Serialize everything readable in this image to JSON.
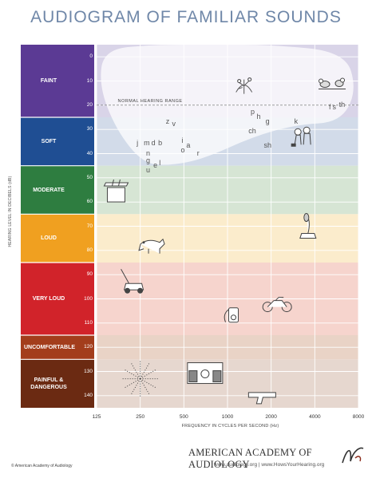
{
  "title": "AUDIOGRAM OF FAMILIAR SOUNDS",
  "chart_data": {
    "type": "audiogram",
    "title": "AUDIOGRAM OF FAMILIAR SOUNDS",
    "xlabel": "FREQUENCY IN CYCLES PER SECOND (Hz)",
    "ylabel": "HEARING LEVEL IN DECIBELS (dB)",
    "x_ticks": [
      125,
      250,
      500,
      1000,
      2000,
      4000,
      8000
    ],
    "x_scale": "log",
    "y_ticks": [
      0,
      10,
      20,
      30,
      40,
      50,
      60,
      70,
      80,
      90,
      100,
      110,
      120,
      130,
      140
    ],
    "ylim": [
      -5,
      145
    ],
    "y_inverted": true,
    "bands": [
      {
        "label": "FAINT",
        "range": [
          -5,
          25
        ],
        "color": "#5b3a94",
        "bg": "#d9d4e8"
      },
      {
        "label": "SOFT",
        "range": [
          25,
          45
        ],
        "color": "#1f4e93",
        "bg": "#d2dbe9"
      },
      {
        "label": "MODERATE",
        "range": [
          45,
          65
        ],
        "color": "#2e7d40",
        "bg": "#d6e5d4"
      },
      {
        "label": "LOUD",
        "range": [
          65,
          85
        ],
        "color": "#f0a020",
        "bg": "#fbeccc"
      },
      {
        "label": "VERY LOUD",
        "range": [
          85,
          115
        ],
        "color": "#d1232a",
        "bg": "#f6d4cd"
      },
      {
        "label": "UNCOMFORTABLE",
        "range": [
          115,
          125
        ],
        "color": "#a33d1c",
        "bg": "#e9d3c6"
      },
      {
        "label": "PAINFUL & DANGEROUS",
        "range": [
          125,
          145
        ],
        "color": "#6b2a12",
        "bg": "#e6d7cf"
      }
    ],
    "annotations": [
      {
        "text": "NORMAL HEARING RANGE",
        "x": 175,
        "y": 20
      }
    ],
    "phonemes": [
      {
        "text": "z",
        "x": 390,
        "y": 27
      },
      {
        "text": "v",
        "x": 430,
        "y": 28
      },
      {
        "text": "j",
        "x": 245,
        "y": 36
      },
      {
        "text": "m",
        "x": 275,
        "y": 36
      },
      {
        "text": "d",
        "x": 310,
        "y": 36
      },
      {
        "text": "b",
        "x": 345,
        "y": 36
      },
      {
        "text": "n",
        "x": 285,
        "y": 40
      },
      {
        "text": "g",
        "x": 285,
        "y": 43
      },
      {
        "text": "e",
        "x": 320,
        "y": 45
      },
      {
        "text": "l",
        "x": 350,
        "y": 44
      },
      {
        "text": "u",
        "x": 285,
        "y": 47
      },
      {
        "text": "i",
        "x": 500,
        "y": 35
      },
      {
        "text": "a",
        "x": 540,
        "y": 37
      },
      {
        "text": "o",
        "x": 495,
        "y": 39
      },
      {
        "text": "r",
        "x": 640,
        "y": 40
      },
      {
        "text": "p",
        "x": 1500,
        "y": 23
      },
      {
        "text": "h",
        "x": 1650,
        "y": 25
      },
      {
        "text": "g",
        "x": 1900,
        "y": 27
      },
      {
        "text": "ch",
        "x": 1450,
        "y": 31
      },
      {
        "text": "sh",
        "x": 1850,
        "y": 37
      },
      {
        "text": "k",
        "x": 3000,
        "y": 27
      },
      {
        "text": "f",
        "x": 5200,
        "y": 21
      },
      {
        "text": "s",
        "x": 5500,
        "y": 21
      },
      {
        "text": "th",
        "x": 6100,
        "y": 20
      }
    ],
    "sounds": [
      {
        "name": "leaves-rustling-icon",
        "x": 1300,
        "y": 12
      },
      {
        "name": "birds-chirping-icon",
        "x": 5200,
        "y": 10
      },
      {
        "name": "people-whispering-icon",
        "x": 3300,
        "y": 33
      },
      {
        "name": "refrigerator-icon",
        "x": 160,
        "y": 56
      },
      {
        "name": "vacuum-cleaner-icon",
        "x": 3500,
        "y": 71
      },
      {
        "name": "dog-barking-icon",
        "x": 300,
        "y": 78
      },
      {
        "name": "lawnmower-icon",
        "x": 220,
        "y": 93
      },
      {
        "name": "motorcycle-icon",
        "x": 2200,
        "y": 102
      },
      {
        "name": "mp3-player-icon",
        "x": 1100,
        "y": 107
      },
      {
        "name": "rock-concert-icon",
        "x": 700,
        "y": 131
      },
      {
        "name": "fireworks-icon",
        "x": 250,
        "y": 133
      },
      {
        "name": "shotgun-icon",
        "x": 1800,
        "y": 140
      }
    ]
  },
  "footer": {
    "copyright": "© American Academy of Audiology",
    "brand": "AMERICAN ACADEMY OF AUDIOLOGY",
    "urls": "www.audiology.org | www.HowsYourHearing.org"
  },
  "colors": {
    "title": "#6f87a8",
    "grid": "#ffffff",
    "normal_range": "#ffffff"
  }
}
